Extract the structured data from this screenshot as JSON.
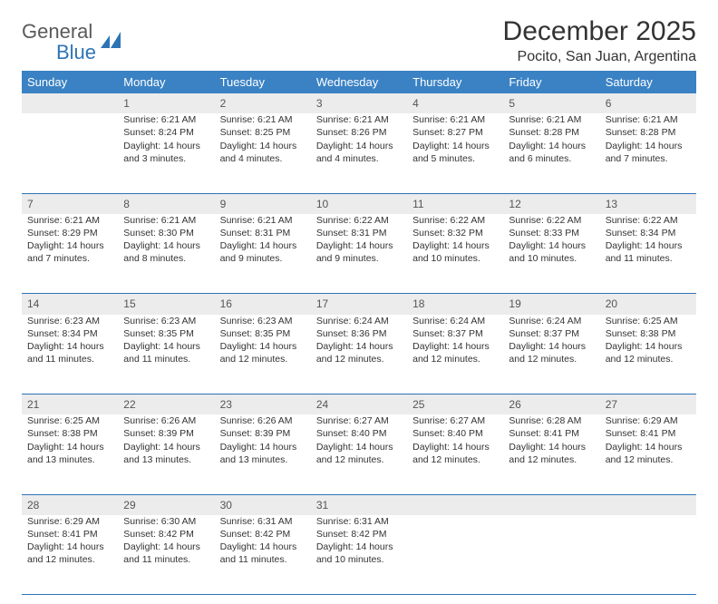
{
  "brand": {
    "name1": "General",
    "name2": "Blue"
  },
  "title": "December 2025",
  "location": "Pocito, San Juan, Argentina",
  "colors": {
    "header_bg": "#3a82c4",
    "header_text": "#ffffff",
    "daynum_bg": "#ececec",
    "border": "#2e74b5",
    "body_text": "#333333",
    "logo_gray": "#5a5a5a",
    "logo_blue": "#2e74b5"
  },
  "weekdays": [
    "Sunday",
    "Monday",
    "Tuesday",
    "Wednesday",
    "Thursday",
    "Friday",
    "Saturday"
  ],
  "weeks": [
    {
      "nums": [
        "",
        "1",
        "2",
        "3",
        "4",
        "5",
        "6"
      ],
      "cells": [
        "",
        "Sunrise: 6:21 AM\nSunset: 8:24 PM\nDaylight: 14 hours and 3 minutes.",
        "Sunrise: 6:21 AM\nSunset: 8:25 PM\nDaylight: 14 hours and 4 minutes.",
        "Sunrise: 6:21 AM\nSunset: 8:26 PM\nDaylight: 14 hours and 4 minutes.",
        "Sunrise: 6:21 AM\nSunset: 8:27 PM\nDaylight: 14 hours and 5 minutes.",
        "Sunrise: 6:21 AM\nSunset: 8:28 PM\nDaylight: 14 hours and 6 minutes.",
        "Sunrise: 6:21 AM\nSunset: 8:28 PM\nDaylight: 14 hours and 7 minutes."
      ]
    },
    {
      "nums": [
        "7",
        "8",
        "9",
        "10",
        "11",
        "12",
        "13"
      ],
      "cells": [
        "Sunrise: 6:21 AM\nSunset: 8:29 PM\nDaylight: 14 hours and 7 minutes.",
        "Sunrise: 6:21 AM\nSunset: 8:30 PM\nDaylight: 14 hours and 8 minutes.",
        "Sunrise: 6:21 AM\nSunset: 8:31 PM\nDaylight: 14 hours and 9 minutes.",
        "Sunrise: 6:22 AM\nSunset: 8:31 PM\nDaylight: 14 hours and 9 minutes.",
        "Sunrise: 6:22 AM\nSunset: 8:32 PM\nDaylight: 14 hours and 10 minutes.",
        "Sunrise: 6:22 AM\nSunset: 8:33 PM\nDaylight: 14 hours and 10 minutes.",
        "Sunrise: 6:22 AM\nSunset: 8:34 PM\nDaylight: 14 hours and 11 minutes."
      ]
    },
    {
      "nums": [
        "14",
        "15",
        "16",
        "17",
        "18",
        "19",
        "20"
      ],
      "cells": [
        "Sunrise: 6:23 AM\nSunset: 8:34 PM\nDaylight: 14 hours and 11 minutes.",
        "Sunrise: 6:23 AM\nSunset: 8:35 PM\nDaylight: 14 hours and 11 minutes.",
        "Sunrise: 6:23 AM\nSunset: 8:35 PM\nDaylight: 14 hours and 12 minutes.",
        "Sunrise: 6:24 AM\nSunset: 8:36 PM\nDaylight: 14 hours and 12 minutes.",
        "Sunrise: 6:24 AM\nSunset: 8:37 PM\nDaylight: 14 hours and 12 minutes.",
        "Sunrise: 6:24 AM\nSunset: 8:37 PM\nDaylight: 14 hours and 12 minutes.",
        "Sunrise: 6:25 AM\nSunset: 8:38 PM\nDaylight: 14 hours and 12 minutes."
      ]
    },
    {
      "nums": [
        "21",
        "22",
        "23",
        "24",
        "25",
        "26",
        "27"
      ],
      "cells": [
        "Sunrise: 6:25 AM\nSunset: 8:38 PM\nDaylight: 14 hours and 13 minutes.",
        "Sunrise: 6:26 AM\nSunset: 8:39 PM\nDaylight: 14 hours and 13 minutes.",
        "Sunrise: 6:26 AM\nSunset: 8:39 PM\nDaylight: 14 hours and 13 minutes.",
        "Sunrise: 6:27 AM\nSunset: 8:40 PM\nDaylight: 14 hours and 12 minutes.",
        "Sunrise: 6:27 AM\nSunset: 8:40 PM\nDaylight: 14 hours and 12 minutes.",
        "Sunrise: 6:28 AM\nSunset: 8:41 PM\nDaylight: 14 hours and 12 minutes.",
        "Sunrise: 6:29 AM\nSunset: 8:41 PM\nDaylight: 14 hours and 12 minutes."
      ]
    },
    {
      "nums": [
        "28",
        "29",
        "30",
        "31",
        "",
        "",
        ""
      ],
      "cells": [
        "Sunrise: 6:29 AM\nSunset: 8:41 PM\nDaylight: 14 hours and 12 minutes.",
        "Sunrise: 6:30 AM\nSunset: 8:42 PM\nDaylight: 14 hours and 11 minutes.",
        "Sunrise: 6:31 AM\nSunset: 8:42 PM\nDaylight: 14 hours and 11 minutes.",
        "Sunrise: 6:31 AM\nSunset: 8:42 PM\nDaylight: 14 hours and 10 minutes.",
        "",
        "",
        ""
      ]
    }
  ]
}
